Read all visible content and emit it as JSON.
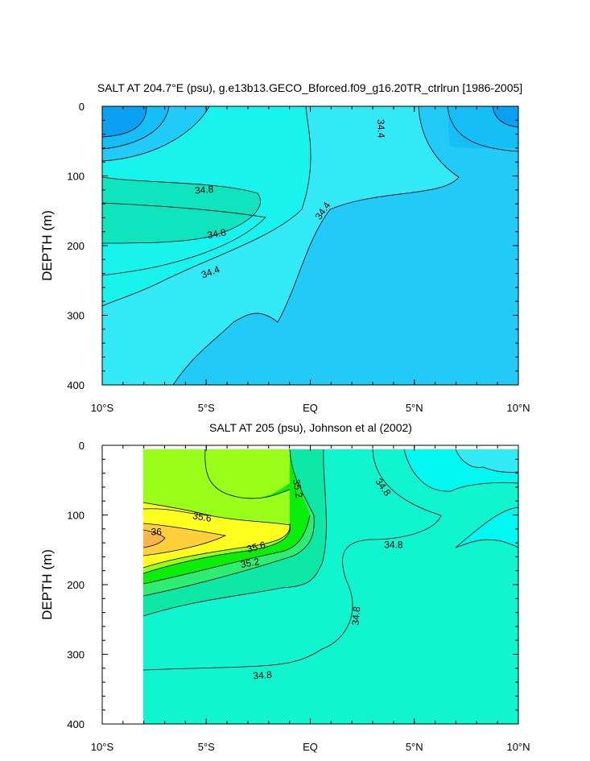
{
  "chart_data": [
    {
      "type": "contour",
      "title": "SALT AT 204.7°E (psu), g.e13b13.GECO_Bforced.f09_g16.20TR_ctrlrun [1986-2005]",
      "ylabel": "DEPTH (m)",
      "xlabel": "",
      "xticks": [
        {
          "value": -10,
          "label": "10°S"
        },
        {
          "value": -5,
          "label": "5°S"
        },
        {
          "value": 0,
          "label": "EQ"
        },
        {
          "value": 5,
          "label": "5°N"
        },
        {
          "value": 10,
          "label": "10°N"
        }
      ],
      "yticks": [
        0,
        100,
        200,
        300,
        400
      ],
      "xlim": [
        -10,
        10
      ],
      "ylim": [
        400,
        0
      ],
      "contour_labels": [
        {
          "text": "34.8",
          "x": -5.1,
          "y": 120,
          "angle": -5
        },
        {
          "text": "34.8",
          "x": -4.5,
          "y": 183,
          "angle": -10
        },
        {
          "text": "34.4",
          "x": -4.8,
          "y": 238,
          "angle": -20
        },
        {
          "text": "34.4",
          "x": 0.6,
          "y": 150,
          "angle": -55
        },
        {
          "text": "34.4",
          "x": 3.4,
          "y": 32,
          "angle": 88
        }
      ],
      "levels": [
        {
          "value": 34.0,
          "color": "#0aa0f4"
        },
        {
          "value": 34.2,
          "color": "#15bff5"
        },
        {
          "value": 34.3,
          "color": "#22cbf7"
        },
        {
          "value": 34.4,
          "color": "#34e9f6"
        },
        {
          "value": 34.6,
          "color": "#19f3ee"
        },
        {
          "value": 34.8,
          "color": "#10e4bf"
        }
      ]
    },
    {
      "type": "contour",
      "title": "SALT AT 205 (psu), Johnson et al (2002)",
      "ylabel": "DEPTH (m)",
      "xlabel": "",
      "xticks": [
        {
          "value": -10,
          "label": "10°S"
        },
        {
          "value": -5,
          "label": "5°S"
        },
        {
          "value": 0,
          "label": "EQ"
        },
        {
          "value": 5,
          "label": "5°N"
        },
        {
          "value": 10,
          "label": "10°N"
        }
      ],
      "yticks": [
        0,
        100,
        200,
        300,
        400
      ],
      "xlim": [
        -10,
        10
      ],
      "ylim": [
        400,
        0
      ],
      "contour_labels": [
        {
          "text": "35.6",
          "x": -5.2,
          "y": 103,
          "angle": 10
        },
        {
          "text": "36",
          "x": -7.4,
          "y": 124,
          "angle": 0
        },
        {
          "text": "35.6",
          "x": -2.6,
          "y": 146,
          "angle": -15
        },
        {
          "text": "35.2",
          "x": -2.9,
          "y": 169,
          "angle": -10
        },
        {
          "text": "35.2",
          "x": -0.6,
          "y": 62,
          "angle": 80
        },
        {
          "text": "34.8",
          "x": 3.5,
          "y": 60,
          "angle": 55
        },
        {
          "text": "34.8",
          "x": 4.0,
          "y": 143,
          "angle": 0
        },
        {
          "text": "34.8",
          "x": 2.2,
          "y": 245,
          "angle": -85
        },
        {
          "text": "34.8",
          "x": -2.3,
          "y": 330,
          "angle": -4
        }
      ],
      "levels": [
        {
          "value": 34.4,
          "color": "#00f7f2"
        },
        {
          "value": 34.6,
          "color": "#33e9f4"
        },
        {
          "value": 34.8,
          "color": "#10f4cf"
        },
        {
          "value": 35.0,
          "color": "#0ee7a5"
        },
        {
          "value": 35.2,
          "color": "#2ded72"
        },
        {
          "value": 35.4,
          "color": "#0bee0a"
        },
        {
          "value": 35.6,
          "color": "#99ff1a"
        },
        {
          "value": 35.8,
          "color": "#fefe1e"
        },
        {
          "value": 36.0,
          "color": "#ffd03a"
        },
        {
          "value": 36.2,
          "color": "#f9b44d"
        }
      ]
    }
  ]
}
